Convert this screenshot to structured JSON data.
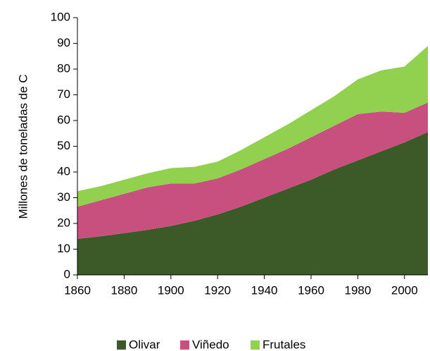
{
  "chart_data": {
    "type": "stacked_area",
    "y_axis_label": "Millones de toneladas de C",
    "x": [
      1860,
      1870,
      1880,
      1890,
      1900,
      1910,
      1920,
      1930,
      1940,
      1950,
      1960,
      1970,
      1980,
      1990,
      2000,
      2010
    ],
    "series": [
      {
        "name": "Olivar",
        "color": "#3b5a27",
        "values": [
          14,
          15,
          16.2,
          17.5,
          19,
          21,
          23.5,
          26.5,
          30,
          33.5,
          37,
          41,
          44.5,
          48,
          51.5,
          55.5
        ]
      },
      {
        "name": "Viñedo",
        "color": "#c8507f",
        "values": [
          12.5,
          14,
          15.3,
          16.5,
          16.5,
          14.5,
          14,
          14.5,
          15,
          15.5,
          16.5,
          17,
          18,
          15.5,
          11.5,
          11.5
        ]
      },
      {
        "name": "Frutales",
        "color": "#92d050",
        "values": [
          6,
          5.5,
          5.5,
          5.5,
          6,
          6.5,
          6.5,
          7.5,
          8.5,
          9.5,
          10.5,
          11.5,
          13.5,
          16,
          18,
          22
        ]
      }
    ],
    "xlim": [
      1860,
      2010
    ],
    "xticks": [
      1860,
      1880,
      1900,
      1920,
      1940,
      1960,
      1980,
      2000
    ],
    "ylim": [
      0,
      100
    ],
    "yticks": [
      0,
      10,
      20,
      30,
      40,
      50,
      60,
      70,
      80,
      90,
      100
    ],
    "grid": false,
    "legend": "bottom"
  }
}
